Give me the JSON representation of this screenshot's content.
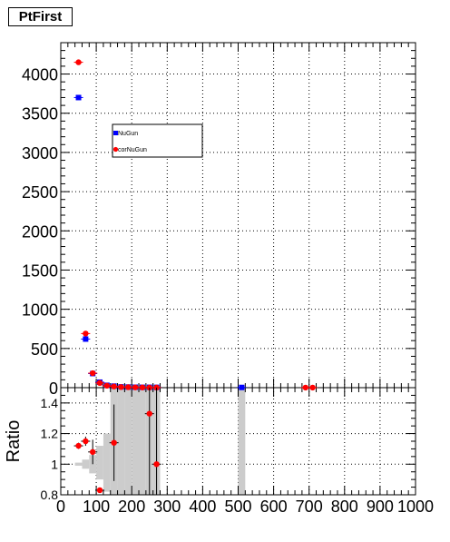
{
  "title": "PtFirst",
  "chart_data": [
    {
      "type": "scatter",
      "panel": "main",
      "ylim": [
        0,
        4400
      ],
      "xlim": [
        0,
        1000
      ],
      "grid": true,
      "legend_placement": "top-left",
      "yticks": [
        "0",
        "500",
        "1000",
        "1500",
        "2000",
        "2500",
        "3000",
        "3500",
        "4000"
      ],
      "series": [
        {
          "name": "NuGun",
          "color": "#0000ff",
          "x": [
            50,
            70,
            90,
            110,
            130,
            150,
            170,
            190,
            210,
            230,
            250,
            270,
            510
          ],
          "y": [
            3700,
            620,
            180,
            70,
            30,
            20,
            10,
            8,
            6,
            5,
            5,
            4,
            3
          ]
        },
        {
          "name": "corNuGun",
          "color": "#ff0000",
          "x": [
            50,
            70,
            90,
            110,
            130,
            150,
            170,
            190,
            210,
            230,
            250,
            270,
            690,
            710
          ],
          "y": [
            4150,
            690,
            185,
            60,
            25,
            15,
            8,
            6,
            4,
            3,
            2,
            2,
            1,
            1
          ]
        }
      ]
    },
    {
      "type": "scatter",
      "panel": "ratio",
      "ylabel": "Ratio",
      "ylim": [
        0.8,
        1.5
      ],
      "xlim": [
        0,
        1000
      ],
      "grid": true,
      "yticks": [
        "0.8",
        "1",
        "1.2",
        "1.4"
      ],
      "xticks": [
        "0",
        "100",
        "200",
        "300",
        "400",
        "500",
        "600",
        "700",
        "800",
        "900",
        "1000"
      ],
      "points": {
        "x": [
          50,
          70,
          90,
          110,
          150,
          250,
          270
        ],
        "y": [
          1.12,
          1.15,
          1.08,
          0.83,
          1.14,
          1.33,
          1.0
        ],
        "err": [
          0.02,
          0.03,
          0.08,
          0.0,
          0.25,
          0.6,
          0.6
        ]
      },
      "uncertainty_band": {
        "color": "#cccccc",
        "bins": [
          {
            "x0": 40,
            "x1": 60,
            "lo": 0.99,
            "hi": 1.01
          },
          {
            "x0": 60,
            "x1": 80,
            "lo": 0.97,
            "hi": 1.03
          },
          {
            "x0": 80,
            "x1": 100,
            "lo": 0.94,
            "hi": 1.06
          },
          {
            "x0": 100,
            "x1": 120,
            "lo": 0.9,
            "hi": 1.12
          },
          {
            "x0": 120,
            "x1": 140,
            "lo": 0.82,
            "hi": 1.2
          },
          {
            "x0": 140,
            "x1": 160,
            "lo": 0.8,
            "hi": 1.5
          },
          {
            "x0": 160,
            "x1": 180,
            "lo": 0.8,
            "hi": 1.5
          },
          {
            "x0": 180,
            "x1": 200,
            "lo": 0.8,
            "hi": 1.5
          },
          {
            "x0": 200,
            "x1": 220,
            "lo": 0.8,
            "hi": 1.5
          },
          {
            "x0": 220,
            "x1": 240,
            "lo": 0.8,
            "hi": 1.5
          },
          {
            "x0": 240,
            "x1": 260,
            "lo": 0.8,
            "hi": 1.5
          },
          {
            "x0": 260,
            "x1": 280,
            "lo": 0.8,
            "hi": 1.5
          },
          {
            "x0": 500,
            "x1": 520,
            "lo": 0.8,
            "hi": 1.5
          }
        ]
      }
    }
  ]
}
